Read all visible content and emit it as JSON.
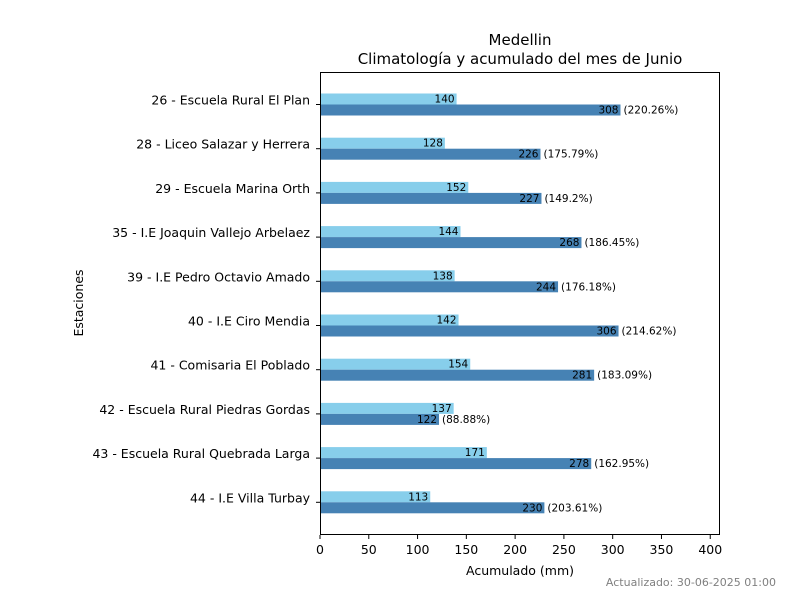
{
  "chart_data": {
    "type": "bar",
    "orientation": "horizontal",
    "title": "Medellin",
    "subtitle": "Climatología y acumulado del mes de Junio",
    "xlabel": "Acumulado (mm)",
    "ylabel": "Estaciones",
    "xlim": [
      0,
      410
    ],
    "xticks": [
      0,
      50,
      100,
      150,
      200,
      250,
      300,
      350,
      400
    ],
    "grid": false,
    "categories": [
      "26 - Escuela Rural El Plan",
      "28 - Liceo Salazar y Herrera",
      "29 - Escuela Marina Orth",
      "35 - I.E Joaquin Vallejo Arbelaez ",
      "39 - I.E Pedro Octavio Amado",
      "40 - I.E Ciro Mendia",
      "41 - Comisaria El Poblado",
      "42 - Escuela Rural Piedras Gordas",
      "43 - Escuela Rural Quebrada Larga",
      "44 - I.E Villa Turbay"
    ],
    "series": [
      {
        "color": "#87CEEB",
        "values": [
          140,
          128,
          152,
          144,
          138,
          142,
          154,
          137,
          171,
          113
        ]
      },
      {
        "color": "#4682B4",
        "values": [
          308,
          226,
          227,
          268,
          244,
          306,
          281,
          122,
          278,
          230
        ],
        "percent_labels": [
          "(220.26%)",
          "(175.79%)",
          "(149.2%)",
          "(186.45%)",
          "(176.18%)",
          "(214.62%)",
          "(183.09%)",
          "(88.88%)",
          "(162.95%)",
          "(203.61%)"
        ]
      }
    ]
  },
  "footer": {
    "updated": "Actualizado: 30-06-2025 01:00"
  }
}
